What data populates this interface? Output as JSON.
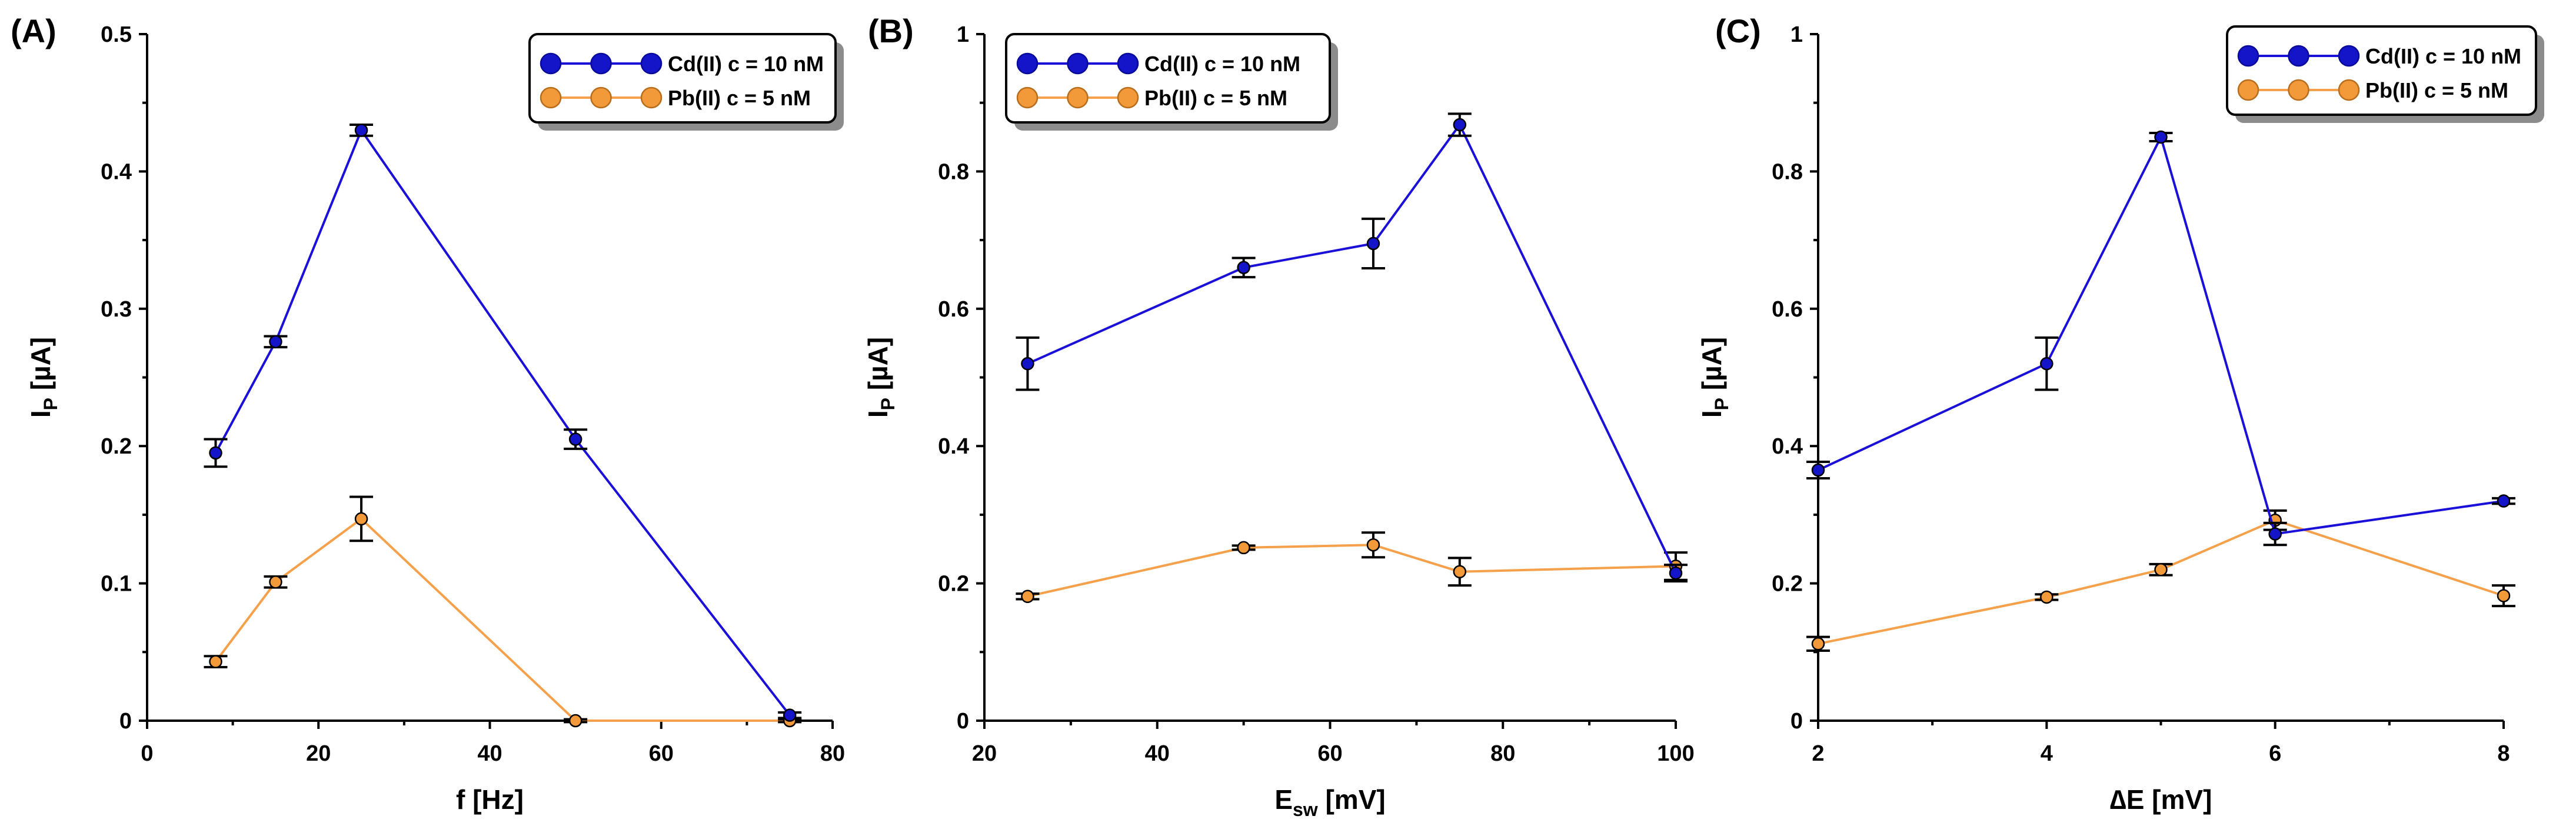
{
  "colors": {
    "cd": "#1a10d8",
    "cd_marker": "#1414c8",
    "pb": "#f5a04a",
    "pb_marker": "#f29a3a"
  },
  "chart_data": [
    {
      "type": "line",
      "panel": "(A)",
      "xlabel": "f [Hz]",
      "ylabel": "I_P [µA]",
      "ylabel_main": "I",
      "ylabel_sub": "P",
      "ylabel_unit": " [µA]",
      "xlim": [
        0,
        80
      ],
      "ylim": [
        0,
        0.5
      ],
      "xticks": [
        0,
        20,
        40,
        60,
        80
      ],
      "xtick_labels": [
        "0",
        "20",
        "40",
        "60",
        "80"
      ],
      "yticks": [
        0,
        0.1,
        0.2,
        0.3,
        0.4,
        0.5
      ],
      "ytick_labels": [
        "0",
        "0.1",
        "0.2",
        "0.3",
        "0.4",
        "0.5"
      ],
      "legend": "top-right",
      "series": [
        {
          "name": "Cd(II) c = 10 nM",
          "x": [
            8,
            15,
            25,
            50,
            75
          ],
          "y": [
            0.195,
            0.276,
            0.43,
            0.205,
            0.004
          ],
          "err": [
            0.01,
            0.004,
            0.004,
            0.007,
            0.002
          ]
        },
        {
          "name": "Pb(II) c = 5 nM",
          "x": [
            8,
            15,
            25,
            50,
            75
          ],
          "y": [
            0.043,
            0.101,
            0.147,
            0.0,
            0.0
          ],
          "err": [
            0.004,
            0.004,
            0.016,
            0.001,
            0.001
          ]
        }
      ]
    },
    {
      "type": "line",
      "panel": "(B)",
      "xlabel": "E_sw [mV]",
      "xlabel_main": "E",
      "xlabel_sub": "sw",
      "xlabel_unit": " [mV]",
      "ylabel": "I_P [µA]",
      "ylabel_main": "I",
      "ylabel_sub": "P",
      "ylabel_unit": " [µA]",
      "xlim": [
        20,
        100
      ],
      "ylim": [
        0,
        1
      ],
      "xticks": [
        20,
        40,
        60,
        80,
        100
      ],
      "xtick_labels": [
        "20",
        "40",
        "60",
        "80",
        "100"
      ],
      "yticks": [
        0,
        0.2,
        0.4,
        0.6,
        0.8,
        1
      ],
      "ytick_labels": [
        "0",
        "0.2",
        "0.4",
        "0.6",
        "0.8",
        "1"
      ],
      "legend": "top-left",
      "series": [
        {
          "name": "Cd(II) c = 10 nM",
          "x": [
            25,
            50,
            65,
            75,
            100
          ],
          "y": [
            0.52,
            0.66,
            0.695,
            0.868,
            0.215
          ],
          "err": [
            0.038,
            0.014,
            0.036,
            0.016,
            0.012
          ]
        },
        {
          "name": "Pb(II) c = 5 nM",
          "x": [
            25,
            50,
            65,
            75,
            100
          ],
          "y": [
            0.181,
            0.252,
            0.256,
            0.217,
            0.225
          ],
          "err": [
            0.004,
            0.003,
            0.018,
            0.02,
            0.02
          ]
        }
      ]
    },
    {
      "type": "line",
      "panel": "(C)",
      "xlabel": "∆E [mV]",
      "ylabel": "I_P [µA]",
      "ylabel_main": "I",
      "ylabel_sub": "P",
      "ylabel_unit": " [µA]",
      "xlim": [
        2,
        8
      ],
      "ylim": [
        0,
        1
      ],
      "xticks": [
        2,
        4,
        6,
        8
      ],
      "xtick_labels": [
        "2",
        "4",
        "6",
        "8"
      ],
      "yticks": [
        0,
        0.2,
        0.4,
        0.6,
        0.8,
        1
      ],
      "ytick_labels": [
        "0",
        "0.2",
        "0.4",
        "0.6",
        "0.8",
        "1"
      ],
      "legend": "top-right",
      "series": [
        {
          "name": "Cd(II) c = 10 nM",
          "x": [
            2,
            4,
            5,
            6,
            8
          ],
          "y": [
            0.365,
            0.52,
            0.85,
            0.272,
            0.32
          ],
          "err": [
            0.012,
            0.038,
            0.006,
            0.016,
            0.004
          ]
        },
        {
          "name": "Pb(II) c = 5 nM",
          "x": [
            2,
            4,
            5,
            6,
            8
          ],
          "y": [
            0.112,
            0.18,
            0.22,
            0.292,
            0.182
          ],
          "err": [
            0.01,
            0.004,
            0.008,
            0.014,
            0.015
          ]
        }
      ]
    }
  ]
}
